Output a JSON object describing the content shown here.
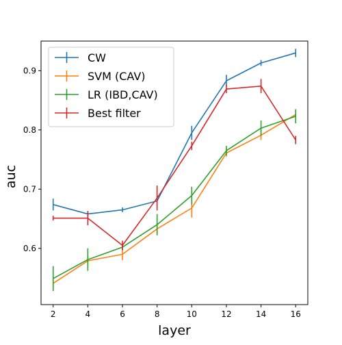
{
  "chart_data": {
    "type": "line",
    "title": "",
    "xlabel": "layer",
    "ylabel": "auc",
    "x": [
      2,
      4,
      6,
      8,
      10,
      12,
      14,
      16
    ],
    "xlim": [
      1.3,
      16.7
    ],
    "ylim": [
      0.505,
      0.95
    ],
    "xticks": [
      2,
      4,
      6,
      8,
      10,
      12,
      14,
      16
    ],
    "yticks": [
      0.6,
      0.7,
      0.8,
      0.9
    ],
    "ytick_labels": [
      "0.6",
      "0.7",
      "0.8",
      "0.9"
    ],
    "grid": false,
    "legend_position": "top-left",
    "error_bars": true,
    "series": [
      {
        "name": "CW",
        "color": "#1f77b4",
        "values": [
          0.674,
          0.658,
          0.665,
          0.68,
          0.795,
          0.883,
          0.913,
          0.93
        ],
        "errors": [
          0.01,
          0.005,
          0.004,
          0.007,
          0.012,
          0.01,
          0.005,
          0.007
        ]
      },
      {
        "name": "SVM (CAV)",
        "color": "#ff7f0e",
        "values": [
          0.541,
          0.579,
          0.59,
          0.633,
          0.668,
          0.761,
          0.791,
          0.826
        ],
        "errors": [
          0.008,
          0.008,
          0.01,
          0.01,
          0.016,
          0.006,
          0.008,
          0.006
        ]
      },
      {
        "name": "LR (IBD,CAV)",
        "color": "#2ca02c",
        "values": [
          0.549,
          0.581,
          0.602,
          0.64,
          0.689,
          0.765,
          0.803,
          0.823
        ],
        "errors": [
          0.021,
          0.019,
          0.005,
          0.018,
          0.015,
          0.008,
          0.013,
          0.012
        ]
      },
      {
        "name": "Best filter",
        "color": "#d62728",
        "values": [
          0.651,
          0.651,
          0.605,
          0.685,
          0.773,
          0.869,
          0.874,
          0.783
        ],
        "errors": [
          0.004,
          0.012,
          0.008,
          0.021,
          0.007,
          0.007,
          0.012,
          0.007
        ]
      }
    ]
  }
}
